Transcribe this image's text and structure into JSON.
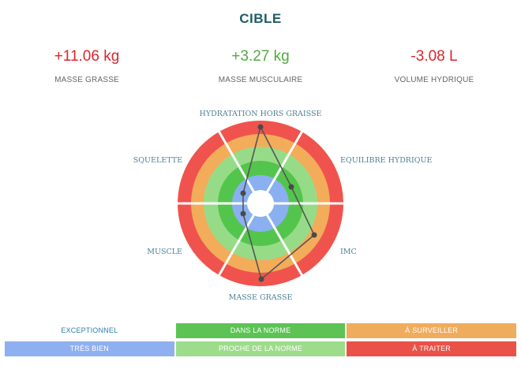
{
  "title": "CIBLE",
  "metrics": [
    {
      "value": "+11.06 kg",
      "label": "MASSE GRASSE",
      "color": "#d9262b"
    },
    {
      "value": "+3.27 kg",
      "label": "MASSE MUSCULAIRE",
      "color": "#53a943"
    },
    {
      "value": "-3.08 L",
      "label": "VOLUME HYDRIQUE",
      "color": "#d9262b"
    }
  ],
  "radar": {
    "axes": [
      {
        "label": "HYDRATATION HORS GRAISSE"
      },
      {
        "label": "EQUILIBRE HYDRIQUE"
      },
      {
        "label": "IMC"
      },
      {
        "label": "MASSE GRASSE"
      },
      {
        "label": "MUSCLE"
      },
      {
        "label": "SQUELETTE"
      }
    ],
    "zone_colors": [
      "#8ab0f2",
      "#54c54c",
      "#96dc88",
      "#f3ac5a",
      "#f0534d"
    ],
    "line_color": "#555555"
  },
  "legend": {
    "rows": [
      [
        {
          "label": "EXCEPTIONNEL",
          "bg": "#ffffff",
          "fg": "#2c7fa8"
        },
        {
          "label": "DANS LA NORME",
          "bg": "#5cc354",
          "fg": "#ffffff"
        },
        {
          "label": "À SURVEILLER",
          "bg": "#f0ac5d",
          "fg": "#ffffff"
        }
      ],
      [
        {
          "label": "TRÈS BIEN",
          "bg": "#8fb0f0",
          "fg": "#ffffff"
        },
        {
          "label": "PROCHE DE LA NORME",
          "bg": "#9ddc8b",
          "fg": "#ffffff"
        },
        {
          "label": "À TRAITER",
          "bg": "#ea5148",
          "fg": "#ffffff"
        }
      ]
    ]
  }
}
